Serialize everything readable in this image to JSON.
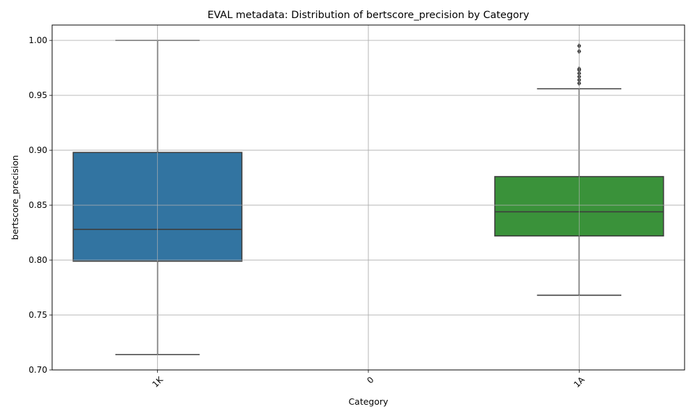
{
  "chart_data": {
    "type": "box",
    "title": "EVAL metadata: Distribution of bertscore_precision by Category",
    "xlabel": "Category",
    "ylabel": "bertscore_precision",
    "ylim": [
      0.7,
      1.014
    ],
    "yticks": [
      0.7,
      0.75,
      0.8,
      0.85,
      0.9,
      0.95,
      1.0
    ],
    "ytick_labels": [
      "0.70",
      "0.75",
      "0.80",
      "0.85",
      "0.90",
      "0.95",
      "1.00"
    ],
    "categories": [
      "1K",
      "0",
      "1A"
    ],
    "grid": true,
    "boxes": [
      {
        "category": "1K",
        "color": "#3274a1",
        "whisker_low": 0.714,
        "q1": 0.799,
        "median": 0.828,
        "q3": 0.898,
        "whisker_high": 1.0,
        "outliers": []
      },
      {
        "category": "0",
        "color": "#e1812c",
        "whisker_low": null,
        "q1": null,
        "median": null,
        "q3": null,
        "whisker_high": null,
        "outliers": []
      },
      {
        "category": "1A",
        "color": "#3a923a",
        "whisker_low": 0.768,
        "q1": 0.822,
        "median": 0.844,
        "q3": 0.876,
        "whisker_high": 0.956,
        "outliers": [
          0.961,
          0.964,
          0.967,
          0.97,
          0.973,
          0.974,
          0.99,
          0.995
        ]
      }
    ]
  }
}
